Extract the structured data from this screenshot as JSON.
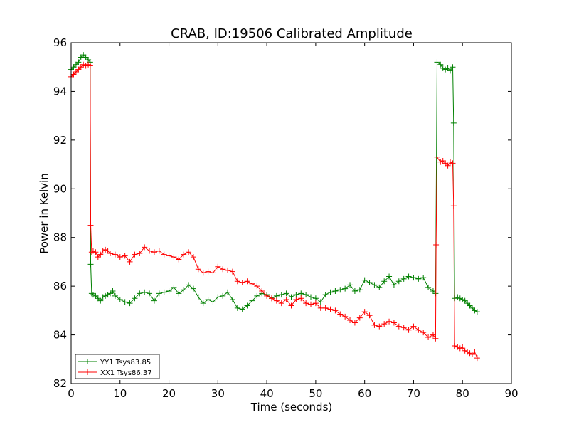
{
  "chart_data": {
    "type": "line",
    "title": "CRAB, ID:19506 Calibrated Amplitude",
    "xlabel": "Time (seconds)",
    "ylabel": "Power in Kelvin",
    "xlim": [
      0,
      90
    ],
    "ylim": [
      82,
      96
    ],
    "xticks": [
      0,
      10,
      20,
      30,
      40,
      50,
      60,
      70,
      80,
      90
    ],
    "yticks": [
      82,
      84,
      86,
      88,
      90,
      92,
      94,
      96
    ],
    "grid": false,
    "legend_position": "lower-left",
    "marker": "+",
    "series": [
      {
        "name": "YY1 Tsys83.85",
        "color": "#008000",
        "points": [
          [
            0,
            94.9
          ],
          [
            0.5,
            95.0
          ],
          [
            1.0,
            95.1
          ],
          [
            1.5,
            95.2
          ],
          [
            2.0,
            95.4
          ],
          [
            2.5,
            95.5
          ],
          [
            3.0,
            95.4
          ],
          [
            3.5,
            95.3
          ],
          [
            3.9,
            95.2
          ],
          [
            4.0,
            86.9
          ],
          [
            4.2,
            85.7
          ],
          [
            4.5,
            85.65
          ],
          [
            5.0,
            85.6
          ],
          [
            5.5,
            85.5
          ],
          [
            6.0,
            85.4
          ],
          [
            6.5,
            85.55
          ],
          [
            7.0,
            85.6
          ],
          [
            7.5,
            85.65
          ],
          [
            8.0,
            85.7
          ],
          [
            8.5,
            85.8
          ],
          [
            9.0,
            85.6
          ],
          [
            10.0,
            85.45
          ],
          [
            11.0,
            85.35
          ],
          [
            12.0,
            85.3
          ],
          [
            13.0,
            85.5
          ],
          [
            14.0,
            85.7
          ],
          [
            15.0,
            85.75
          ],
          [
            16.0,
            85.7
          ],
          [
            17.0,
            85.4
          ],
          [
            18.0,
            85.7
          ],
          [
            19.0,
            85.75
          ],
          [
            20.0,
            85.8
          ],
          [
            21.0,
            85.95
          ],
          [
            22.0,
            85.7
          ],
          [
            23.0,
            85.85
          ],
          [
            24.0,
            86.05
          ],
          [
            25.0,
            85.9
          ],
          [
            26.0,
            85.55
          ],
          [
            27.0,
            85.3
          ],
          [
            28.0,
            85.45
          ],
          [
            29.0,
            85.35
          ],
          [
            30.0,
            85.55
          ],
          [
            31.0,
            85.6
          ],
          [
            32.0,
            85.75
          ],
          [
            33.0,
            85.45
          ],
          [
            34.0,
            85.1
          ],
          [
            35.0,
            85.05
          ],
          [
            36.0,
            85.2
          ],
          [
            37.0,
            85.4
          ],
          [
            38.0,
            85.6
          ],
          [
            39.0,
            85.7
          ],
          [
            40.0,
            85.65
          ],
          [
            41.0,
            85.5
          ],
          [
            42.0,
            85.6
          ],
          [
            43.0,
            85.65
          ],
          [
            44.0,
            85.7
          ],
          [
            45.0,
            85.55
          ],
          [
            46.0,
            85.65
          ],
          [
            47.0,
            85.7
          ],
          [
            48.0,
            85.65
          ],
          [
            49.0,
            85.55
          ],
          [
            50.0,
            85.5
          ],
          [
            51.0,
            85.35
          ],
          [
            52.0,
            85.65
          ],
          [
            53.0,
            85.75
          ],
          [
            54.0,
            85.8
          ],
          [
            55.0,
            85.85
          ],
          [
            56.0,
            85.9
          ],
          [
            57.0,
            86.05
          ],
          [
            58.0,
            85.8
          ],
          [
            59.0,
            85.85
          ],
          [
            60.0,
            86.25
          ],
          [
            61.0,
            86.15
          ],
          [
            62.0,
            86.05
          ],
          [
            63.0,
            85.95
          ],
          [
            64.0,
            86.2
          ],
          [
            65.0,
            86.4
          ],
          [
            66.0,
            86.05
          ],
          [
            67.0,
            86.2
          ],
          [
            68.0,
            86.3
          ],
          [
            69.0,
            86.4
          ],
          [
            70.0,
            86.35
          ],
          [
            71.0,
            86.3
          ],
          [
            72.0,
            86.35
          ],
          [
            73.0,
            85.95
          ],
          [
            74.0,
            85.8
          ],
          [
            74.5,
            85.7
          ],
          [
            74.8,
            95.2
          ],
          [
            75.5,
            95.1
          ],
          [
            76.0,
            94.95
          ],
          [
            76.5,
            94.9
          ],
          [
            77.0,
            94.95
          ],
          [
            77.5,
            94.85
          ],
          [
            78.0,
            95.0
          ],
          [
            78.2,
            92.7
          ],
          [
            78.4,
            85.5
          ],
          [
            79.0,
            85.55
          ],
          [
            79.5,
            85.5
          ],
          [
            80.0,
            85.45
          ],
          [
            80.5,
            85.4
          ],
          [
            81.0,
            85.3
          ],
          [
            81.5,
            85.2
          ],
          [
            82.0,
            85.1
          ],
          [
            82.5,
            85.0
          ],
          [
            83.0,
            84.95
          ]
        ]
      },
      {
        "name": "XX1 Tsys86.37",
        "color": "#ff0000",
        "points": [
          [
            0,
            94.6
          ],
          [
            0.5,
            94.7
          ],
          [
            1.0,
            94.8
          ],
          [
            1.5,
            94.9
          ],
          [
            2.0,
            95.0
          ],
          [
            2.5,
            95.1
          ],
          [
            3.0,
            95.05
          ],
          [
            3.5,
            95.1
          ],
          [
            3.9,
            95.05
          ],
          [
            4.0,
            88.5
          ],
          [
            4.2,
            87.4
          ],
          [
            4.5,
            87.45
          ],
          [
            5.0,
            87.4
          ],
          [
            5.5,
            87.2
          ],
          [
            6.0,
            87.3
          ],
          [
            6.5,
            87.45
          ],
          [
            7.0,
            87.5
          ],
          [
            7.5,
            87.45
          ],
          [
            8.0,
            87.35
          ],
          [
            9.0,
            87.3
          ],
          [
            10.0,
            87.2
          ],
          [
            11.0,
            87.25
          ],
          [
            12.0,
            87.0
          ],
          [
            13.0,
            87.3
          ],
          [
            14.0,
            87.35
          ],
          [
            15.0,
            87.6
          ],
          [
            16.0,
            87.45
          ],
          [
            17.0,
            87.4
          ],
          [
            18.0,
            87.45
          ],
          [
            19.0,
            87.3
          ],
          [
            20.0,
            87.25
          ],
          [
            21.0,
            87.2
          ],
          [
            22.0,
            87.1
          ],
          [
            23.0,
            87.3
          ],
          [
            24.0,
            87.4
          ],
          [
            25.0,
            87.2
          ],
          [
            26.0,
            86.7
          ],
          [
            27.0,
            86.55
          ],
          [
            28.0,
            86.6
          ],
          [
            29.0,
            86.55
          ],
          [
            30.0,
            86.8
          ],
          [
            31.0,
            86.7
          ],
          [
            32.0,
            86.65
          ],
          [
            33.0,
            86.6
          ],
          [
            34.0,
            86.2
          ],
          [
            35.0,
            86.15
          ],
          [
            36.0,
            86.2
          ],
          [
            37.0,
            86.1
          ],
          [
            38.0,
            86.0
          ],
          [
            39.0,
            85.8
          ],
          [
            40.0,
            85.6
          ],
          [
            41.0,
            85.5
          ],
          [
            42.0,
            85.4
          ],
          [
            43.0,
            85.3
          ],
          [
            44.0,
            85.45
          ],
          [
            45.0,
            85.2
          ],
          [
            46.0,
            85.45
          ],
          [
            47.0,
            85.5
          ],
          [
            48.0,
            85.3
          ],
          [
            49.0,
            85.25
          ],
          [
            50.0,
            85.3
          ],
          [
            51.0,
            85.1
          ],
          [
            52.0,
            85.1
          ],
          [
            53.0,
            85.05
          ],
          [
            54.0,
            85.0
          ],
          [
            55.0,
            84.85
          ],
          [
            56.0,
            84.75
          ],
          [
            57.0,
            84.6
          ],
          [
            58.0,
            84.5
          ],
          [
            59.0,
            84.7
          ],
          [
            60.0,
            84.95
          ],
          [
            61.0,
            84.8
          ],
          [
            62.0,
            84.4
          ],
          [
            63.0,
            84.35
          ],
          [
            64.0,
            84.45
          ],
          [
            65.0,
            84.55
          ],
          [
            66.0,
            84.5
          ],
          [
            67.0,
            84.35
          ],
          [
            68.0,
            84.3
          ],
          [
            69.0,
            84.2
          ],
          [
            70.0,
            84.35
          ],
          [
            71.0,
            84.2
          ],
          [
            72.0,
            84.1
          ],
          [
            73.0,
            83.9
          ],
          [
            74.0,
            84.0
          ],
          [
            74.5,
            83.85
          ],
          [
            74.6,
            87.7
          ],
          [
            74.8,
            91.3
          ],
          [
            75.5,
            91.1
          ],
          [
            76.0,
            91.15
          ],
          [
            76.5,
            91.05
          ],
          [
            77.0,
            90.95
          ],
          [
            77.5,
            91.1
          ],
          [
            78.0,
            91.05
          ],
          [
            78.2,
            89.3
          ],
          [
            78.4,
            83.55
          ],
          [
            79.0,
            83.5
          ],
          [
            79.5,
            83.45
          ],
          [
            80.0,
            83.5
          ],
          [
            80.5,
            83.35
          ],
          [
            81.0,
            83.3
          ],
          [
            81.5,
            83.25
          ],
          [
            82.0,
            83.2
          ],
          [
            82.5,
            83.3
          ],
          [
            83.0,
            83.05
          ]
        ]
      }
    ]
  }
}
